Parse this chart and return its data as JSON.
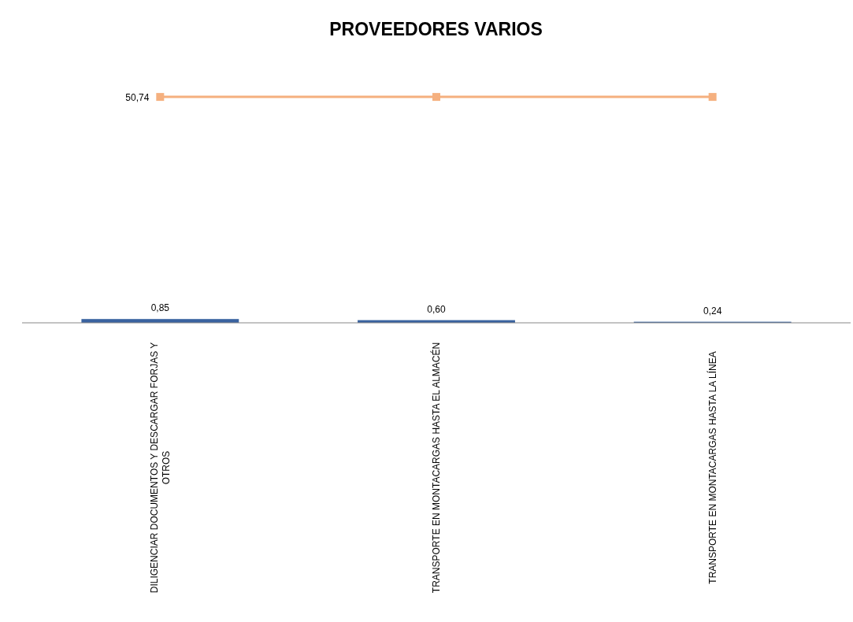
{
  "chart_data": {
    "type": "bar",
    "title": "PROVEEDORES VARIOS",
    "categories": [
      "DILIGENCIAR DOCUMENTOS Y DESCARGAR FORJAS Y OTROS",
      "TRANSPORTE EN MONTACARGAS HASTA EL ALMACÉN",
      "TRANSPORTE EN MONTACARGAS HASTA LA LÍNEA"
    ],
    "series": [
      {
        "color": "#3a63a0",
        "values": [
          0.85,
          0.6,
          0.24
        ],
        "value_labels": [
          "0,85",
          "0,60",
          "0,24"
        ]
      },
      {
        "type": "line",
        "color": "#f5b07f",
        "values": [
          50.74,
          50.74,
          50.74
        ],
        "value_labels": [
          "50,74",
          null,
          null
        ],
        "marker": "square"
      }
    ]
  }
}
